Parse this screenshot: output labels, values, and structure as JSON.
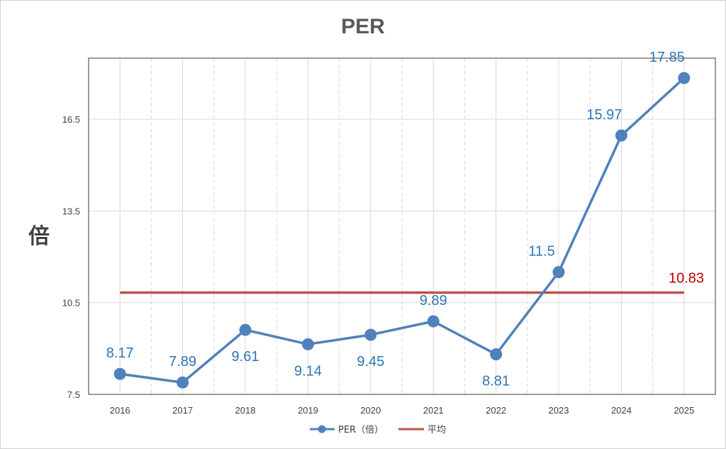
{
  "chart_data": {
    "type": "line",
    "title": "PER",
    "xlabel": "",
    "ylabel": "倍",
    "categories": [
      "2016",
      "2017",
      "2018",
      "2019",
      "2020",
      "2021",
      "2022",
      "2023",
      "2024",
      "2025"
    ],
    "yticks": [
      "7.5",
      "10.5",
      "13.5",
      "16.5"
    ],
    "ylim": [
      7.5,
      18.5
    ],
    "grid": true,
    "legend_position": "bottom",
    "series": [
      {
        "name": "PER（倍）",
        "values": [
          8.17,
          7.89,
          9.61,
          9.14,
          9.45,
          9.89,
          8.81,
          11.5,
          15.97,
          17.85
        ],
        "labels": [
          "8.17",
          "7.89",
          "9.61",
          "9.14",
          "9.45",
          "9.89",
          "8.81",
          "11.5",
          "15.97",
          "17.85"
        ],
        "color": "#4f81bd",
        "label_color": "#2e75b6"
      },
      {
        "name": "平均",
        "values": [
          10.83,
          10.83,
          10.83,
          10.83,
          10.83,
          10.83,
          10.83,
          10.83,
          10.83,
          10.83
        ],
        "label": "10.83",
        "color": "#c0504d",
        "label_color": "#c00000"
      }
    ]
  }
}
